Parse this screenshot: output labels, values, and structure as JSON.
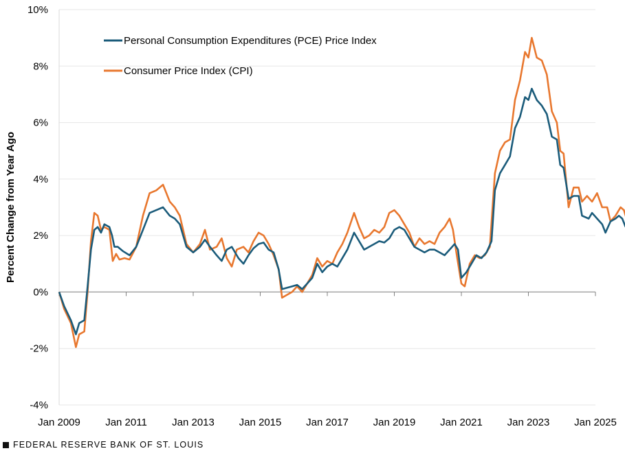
{
  "footer": {
    "source": "FEDERAL RESERVE BANK OF ST. LOUIS"
  },
  "chart_data": {
    "type": "line",
    "title": "",
    "xlabel": "",
    "ylabel": "Percent Change from Year Ago",
    "ylim": [
      -4,
      10
    ],
    "yticks": [
      -4,
      -2,
      0,
      2,
      4,
      6,
      8,
      10
    ],
    "ytick_labels": [
      "-4%",
      "-2%",
      "0%",
      "2%",
      "4%",
      "6%",
      "8%",
      "10%"
    ],
    "xlim": [
      2009.0,
      2025.0
    ],
    "xticks": [
      2009,
      2011,
      2013,
      2015,
      2017,
      2019,
      2021,
      2023,
      2025
    ],
    "xtick_labels": [
      "Jan 2009",
      "Jan 2011",
      "Jan 2013",
      "Jan 2015",
      "Jan 2017",
      "Jan 2019",
      "Jan 2021",
      "Jan 2023",
      "Jan 2025"
    ],
    "legend_position": "top-left",
    "series": [
      {
        "name": "Personal Consumption Expenditures (PCE) Price Index",
        "color": "#1a5b7a",
        "points": [
          [
            2009.0,
            0.0
          ],
          [
            2009.15,
            -0.5
          ],
          [
            2009.35,
            -1.0
          ],
          [
            2009.5,
            -1.5
          ],
          [
            2009.6,
            -1.1
          ],
          [
            2009.75,
            -1.0
          ],
          [
            2009.85,
            0.2
          ],
          [
            2009.95,
            1.5
          ],
          [
            2010.05,
            2.2
          ],
          [
            2010.15,
            2.3
          ],
          [
            2010.25,
            2.1
          ],
          [
            2010.35,
            2.4
          ],
          [
            2010.5,
            2.3
          ],
          [
            2010.58,
            2.0
          ],
          [
            2010.65,
            1.6
          ],
          [
            2010.75,
            1.6
          ],
          [
            2010.9,
            1.45
          ],
          [
            2011.1,
            1.3
          ],
          [
            2011.3,
            1.6
          ],
          [
            2011.5,
            2.2
          ],
          [
            2011.7,
            2.8
          ],
          [
            2011.9,
            2.9
          ],
          [
            2012.1,
            3.0
          ],
          [
            2012.3,
            2.7
          ],
          [
            2012.45,
            2.6
          ],
          [
            2012.6,
            2.4
          ],
          [
            2012.8,
            1.6
          ],
          [
            2013.0,
            1.4
          ],
          [
            2013.2,
            1.6
          ],
          [
            2013.35,
            1.85
          ],
          [
            2013.5,
            1.6
          ],
          [
            2013.7,
            1.3
          ],
          [
            2013.85,
            1.1
          ],
          [
            2014.0,
            1.5
          ],
          [
            2014.15,
            1.6
          ],
          [
            2014.35,
            1.2
          ],
          [
            2014.5,
            1.0
          ],
          [
            2014.65,
            1.3
          ],
          [
            2014.8,
            1.55
          ],
          [
            2014.95,
            1.7
          ],
          [
            2015.1,
            1.75
          ],
          [
            2015.25,
            1.5
          ],
          [
            2015.4,
            1.4
          ],
          [
            2015.55,
            0.8
          ],
          [
            2015.65,
            0.1
          ],
          [
            2015.8,
            0.15
          ],
          [
            2015.95,
            0.2
          ],
          [
            2016.1,
            0.25
          ],
          [
            2016.25,
            0.1
          ],
          [
            2016.4,
            0.3
          ],
          [
            2016.55,
            0.5
          ],
          [
            2016.7,
            1.0
          ],
          [
            2016.85,
            0.7
          ],
          [
            2017.0,
            0.9
          ],
          [
            2017.15,
            1.0
          ],
          [
            2017.3,
            0.9
          ],
          [
            2017.45,
            1.2
          ],
          [
            2017.6,
            1.5
          ],
          [
            2017.8,
            2.1
          ],
          [
            2017.95,
            1.8
          ],
          [
            2018.1,
            1.5
          ],
          [
            2018.25,
            1.6
          ],
          [
            2018.4,
            1.7
          ],
          [
            2018.55,
            1.8
          ],
          [
            2018.7,
            1.75
          ],
          [
            2018.85,
            1.9
          ],
          [
            2019.0,
            2.2
          ],
          [
            2019.15,
            2.3
          ],
          [
            2019.3,
            2.2
          ],
          [
            2019.45,
            1.9
          ],
          [
            2019.6,
            1.6
          ],
          [
            2019.75,
            1.5
          ],
          [
            2019.9,
            1.4
          ],
          [
            2020.05,
            1.5
          ],
          [
            2020.2,
            1.5
          ],
          [
            2020.35,
            1.4
          ],
          [
            2020.5,
            1.3
          ],
          [
            2020.65,
            1.5
          ],
          [
            2020.8,
            1.7
          ],
          [
            2020.9,
            1.5
          ],
          [
            2021.0,
            0.5
          ],
          [
            2021.15,
            0.7
          ],
          [
            2021.3,
            1.0
          ],
          [
            2021.45,
            1.3
          ],
          [
            2021.6,
            1.2
          ],
          [
            2021.75,
            1.4
          ],
          [
            2021.9,
            1.8
          ],
          [
            2022.0,
            3.6
          ],
          [
            2022.15,
            4.2
          ],
          [
            2022.3,
            4.5
          ],
          [
            2022.45,
            4.8
          ],
          [
            2022.6,
            5.8
          ],
          [
            2022.75,
            6.2
          ],
          [
            2022.9,
            6.9
          ],
          [
            2023.0,
            6.8
          ],
          [
            2023.1,
            7.2
          ],
          [
            2023.25,
            6.8
          ],
          [
            2023.4,
            6.6
          ],
          [
            2023.55,
            6.3
          ],
          [
            2023.7,
            5.5
          ],
          [
            2023.85,
            5.4
          ],
          [
            2023.95,
            4.5
          ],
          [
            2024.05,
            4.4
          ],
          [
            2024.2,
            3.3
          ],
          [
            2024.35,
            3.4
          ],
          [
            2024.5,
            3.4
          ],
          [
            2024.6,
            2.7
          ],
          [
            2024.8,
            2.6
          ],
          [
            2024.9,
            2.8
          ],
          [
            2025.05,
            2.6
          ],
          [
            2025.2,
            2.4
          ],
          [
            2025.3,
            2.1
          ],
          [
            2025.45,
            2.5
          ],
          [
            2025.6,
            2.6
          ],
          [
            2025.7,
            2.7
          ],
          [
            2025.8,
            2.6
          ],
          [
            2025.9,
            2.3
          ]
        ]
      },
      {
        "name": "Consumer Price Index (CPI)",
        "color": "#e8772e",
        "points": [
          [
            2009.0,
            0.0
          ],
          [
            2009.15,
            -0.6
          ],
          [
            2009.35,
            -1.1
          ],
          [
            2009.5,
            -1.95
          ],
          [
            2009.6,
            -1.5
          ],
          [
            2009.75,
            -1.4
          ],
          [
            2009.85,
            0.0
          ],
          [
            2009.95,
            1.8
          ],
          [
            2010.05,
            2.8
          ],
          [
            2010.15,
            2.7
          ],
          [
            2010.25,
            2.2
          ],
          [
            2010.35,
            2.3
          ],
          [
            2010.5,
            2.2
          ],
          [
            2010.6,
            1.1
          ],
          [
            2010.7,
            1.35
          ],
          [
            2010.8,
            1.15
          ],
          [
            2010.95,
            1.2
          ],
          [
            2011.1,
            1.15
          ],
          [
            2011.3,
            1.6
          ],
          [
            2011.5,
            2.7
          ],
          [
            2011.7,
            3.5
          ],
          [
            2011.9,
            3.6
          ],
          [
            2012.1,
            3.8
          ],
          [
            2012.3,
            3.2
          ],
          [
            2012.45,
            3.0
          ],
          [
            2012.6,
            2.7
          ],
          [
            2012.8,
            1.7
          ],
          [
            2013.0,
            1.4
          ],
          [
            2013.2,
            1.7
          ],
          [
            2013.35,
            2.2
          ],
          [
            2013.5,
            1.5
          ],
          [
            2013.7,
            1.6
          ],
          [
            2013.85,
            1.9
          ],
          [
            2014.0,
            1.2
          ],
          [
            2014.15,
            0.9
          ],
          [
            2014.3,
            1.5
          ],
          [
            2014.5,
            1.6
          ],
          [
            2014.65,
            1.4
          ],
          [
            2014.8,
            1.8
          ],
          [
            2014.95,
            2.1
          ],
          [
            2015.1,
            2.0
          ],
          [
            2015.25,
            1.7
          ],
          [
            2015.4,
            1.3
          ],
          [
            2015.55,
            0.8
          ],
          [
            2015.65,
            -0.2
          ],
          [
            2015.8,
            -0.1
          ],
          [
            2015.95,
            0.0
          ],
          [
            2016.1,
            0.2
          ],
          [
            2016.25,
            0.0
          ],
          [
            2016.4,
            0.3
          ],
          [
            2016.55,
            0.6
          ],
          [
            2016.7,
            1.2
          ],
          [
            2016.85,
            0.9
          ],
          [
            2017.0,
            1.1
          ],
          [
            2017.15,
            1.0
          ],
          [
            2017.3,
            1.4
          ],
          [
            2017.45,
            1.7
          ],
          [
            2017.6,
            2.1
          ],
          [
            2017.8,
            2.8
          ],
          [
            2017.95,
            2.3
          ],
          [
            2018.1,
            1.9
          ],
          [
            2018.25,
            2.0
          ],
          [
            2018.4,
            2.2
          ],
          [
            2018.55,
            2.1
          ],
          [
            2018.7,
            2.3
          ],
          [
            2018.85,
            2.8
          ],
          [
            2019.0,
            2.9
          ],
          [
            2019.15,
            2.7
          ],
          [
            2019.3,
            2.4
          ],
          [
            2019.45,
            2.1
          ],
          [
            2019.6,
            1.6
          ],
          [
            2019.75,
            1.9
          ],
          [
            2019.9,
            1.7
          ],
          [
            2020.05,
            1.8
          ],
          [
            2020.2,
            1.7
          ],
          [
            2020.35,
            2.1
          ],
          [
            2020.5,
            2.3
          ],
          [
            2020.65,
            2.6
          ],
          [
            2020.75,
            2.2
          ],
          [
            2020.85,
            1.4
          ],
          [
            2021.0,
            0.3
          ],
          [
            2021.1,
            0.2
          ],
          [
            2021.25,
            1.0
          ],
          [
            2021.4,
            1.3
          ],
          [
            2021.55,
            1.2
          ],
          [
            2021.7,
            1.3
          ],
          [
            2021.85,
            1.6
          ],
          [
            2022.0,
            4.2
          ],
          [
            2022.15,
            5.0
          ],
          [
            2022.3,
            5.3
          ],
          [
            2022.45,
            5.4
          ],
          [
            2022.6,
            6.8
          ],
          [
            2022.75,
            7.5
          ],
          [
            2022.9,
            8.5
          ],
          [
            2023.0,
            8.3
          ],
          [
            2023.1,
            9.0
          ],
          [
            2023.25,
            8.3
          ],
          [
            2023.4,
            8.2
          ],
          [
            2023.55,
            7.7
          ],
          [
            2023.7,
            6.4
          ],
          [
            2023.85,
            6.0
          ],
          [
            2023.95,
            5.0
          ],
          [
            2024.05,
            4.9
          ],
          [
            2024.2,
            3.0
          ],
          [
            2024.35,
            3.7
          ],
          [
            2024.5,
            3.7
          ],
          [
            2024.6,
            3.2
          ],
          [
            2024.75,
            3.4
          ],
          [
            2024.9,
            3.2
          ],
          [
            2025.05,
            3.5
          ],
          [
            2025.2,
            3.0
          ],
          [
            2025.35,
            3.0
          ],
          [
            2025.45,
            2.5
          ],
          [
            2025.6,
            2.7
          ],
          [
            2025.75,
            3.0
          ],
          [
            2025.85,
            2.9
          ],
          [
            2025.95,
            2.5
          ]
        ]
      }
    ]
  }
}
